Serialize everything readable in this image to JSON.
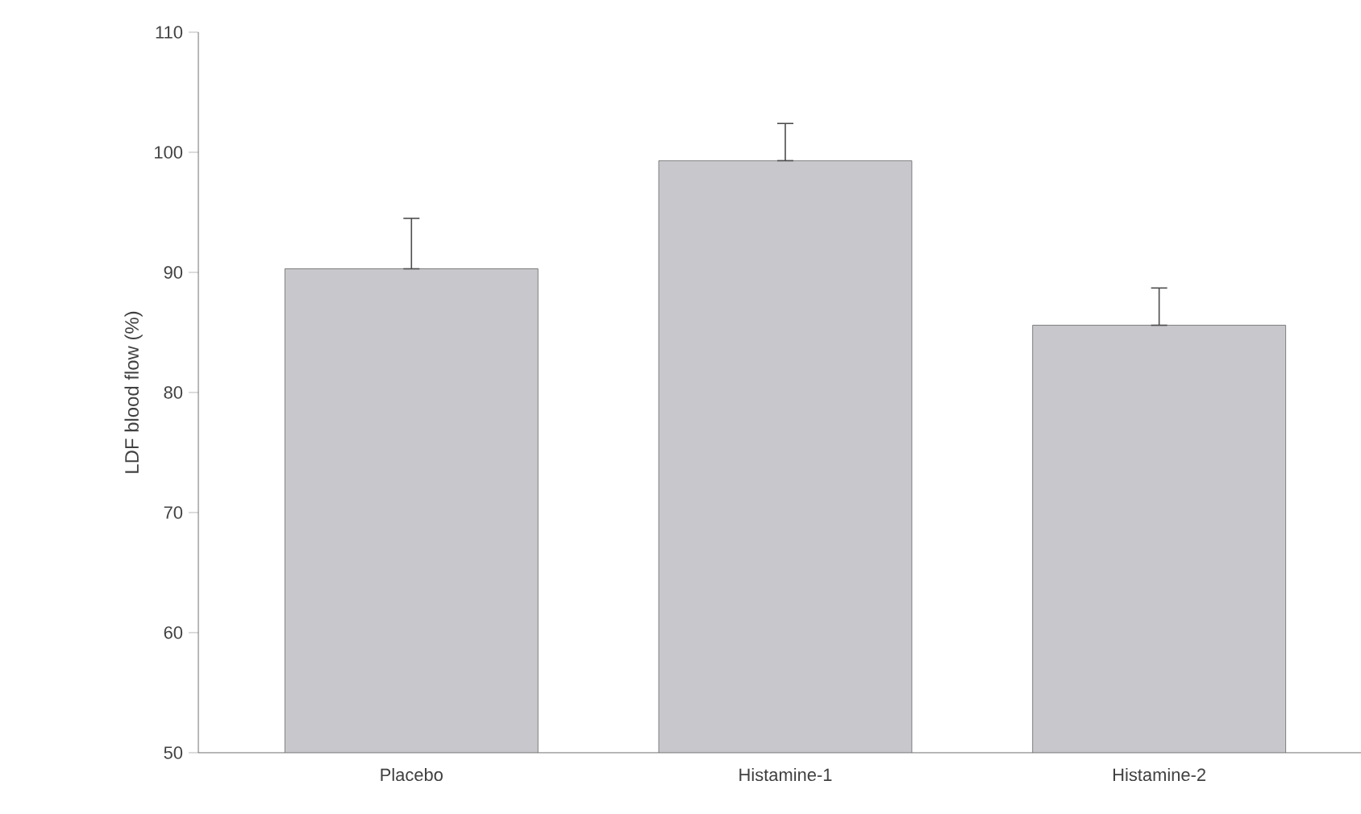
{
  "chart_data": {
    "type": "bar",
    "ylabel": "LDF blood flow (%)",
    "categories": [
      "Placebo",
      "Histamine-1",
      "Histamine-2"
    ],
    "values": [
      90.3,
      99.3,
      85.6
    ],
    "errors": [
      [
        90.3,
        94.5
      ],
      [
        99.3,
        102.4
      ],
      [
        85.6,
        88.7
      ]
    ],
    "color": "#c8c8cc",
    "ylim": [
      50,
      110
    ],
    "yticks": [
      50,
      60,
      70,
      80,
      90,
      100,
      110
    ],
    "grid": false
  }
}
